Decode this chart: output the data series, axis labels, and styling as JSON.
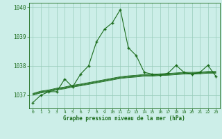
{
  "xlabel": "Graphe pression niveau de la mer (hPa)",
  "ylim": [
    1036.55,
    1040.15
  ],
  "xlim": [
    -0.5,
    23.5
  ],
  "yticks": [
    1037,
    1038,
    1039,
    1040
  ],
  "xticks": [
    0,
    1,
    2,
    3,
    4,
    5,
    6,
    7,
    8,
    9,
    10,
    11,
    12,
    13,
    14,
    15,
    16,
    17,
    18,
    19,
    20,
    21,
    22,
    23
  ],
  "background_color": "#cceee8",
  "grid_color": "#99ccbb",
  "line_color": "#1a6b1a",
  "main_series": [
    1036.75,
    1037.0,
    1037.12,
    1037.12,
    1037.55,
    1037.28,
    1037.72,
    1038.0,
    1038.82,
    1039.25,
    1039.47,
    1039.92,
    1038.62,
    1038.35,
    1037.78,
    1037.72,
    1037.68,
    1037.75,
    1038.02,
    1037.78,
    1037.72,
    1037.78,
    1038.02,
    1037.65
  ],
  "flat_lines": [
    [
      1037.0,
      1037.08,
      1037.12,
      1037.18,
      1037.22,
      1037.28,
      1037.32,
      1037.37,
      1037.42,
      1037.47,
      1037.52,
      1037.57,
      1037.6,
      1037.62,
      1037.65,
      1037.65,
      1037.67,
      1037.68,
      1037.7,
      1037.72,
      1037.72,
      1037.73,
      1037.75,
      1037.75
    ],
    [
      1037.02,
      1037.1,
      1037.14,
      1037.2,
      1037.24,
      1037.3,
      1037.34,
      1037.39,
      1037.44,
      1037.49,
      1037.54,
      1037.59,
      1037.62,
      1037.64,
      1037.67,
      1037.67,
      1037.69,
      1037.7,
      1037.72,
      1037.74,
      1037.74,
      1037.75,
      1037.77,
      1037.77
    ],
    [
      1037.04,
      1037.12,
      1037.16,
      1037.22,
      1037.26,
      1037.32,
      1037.36,
      1037.41,
      1037.46,
      1037.51,
      1037.56,
      1037.61,
      1037.64,
      1037.66,
      1037.69,
      1037.69,
      1037.71,
      1037.72,
      1037.74,
      1037.76,
      1037.76,
      1037.77,
      1037.79,
      1037.79
    ],
    [
      1037.06,
      1037.14,
      1037.18,
      1037.24,
      1037.28,
      1037.34,
      1037.38,
      1037.43,
      1037.48,
      1037.53,
      1037.58,
      1037.63,
      1037.66,
      1037.68,
      1037.71,
      1037.71,
      1037.73,
      1037.74,
      1037.76,
      1037.78,
      1037.78,
      1037.79,
      1037.81,
      1037.81
    ]
  ]
}
